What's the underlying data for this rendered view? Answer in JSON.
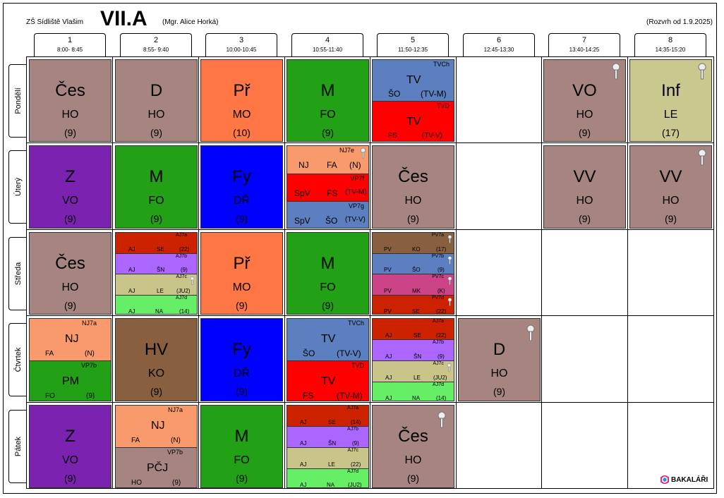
{
  "header": {
    "school": "ZŠ Sídliště Vlašim",
    "class_name": "VII.A",
    "teacher": "(Mgr. Alice Horká)",
    "valid_from": "(Rozvrh od 1.9.2025)"
  },
  "periods": [
    {
      "num": "1",
      "time": "8:00- 8:45"
    },
    {
      "num": "2",
      "time": "8:55- 9:40"
    },
    {
      "num": "3",
      "time": "10:00-10:45"
    },
    {
      "num": "4",
      "time": "10:55-11:40"
    },
    {
      "num": "5",
      "time": "11:50-12:35"
    },
    {
      "num": "6",
      "time": "12:45-13:30"
    },
    {
      "num": "7",
      "time": "13:40-14:25"
    },
    {
      "num": "8",
      "time": "14:35-15:20"
    }
  ],
  "days": [
    "Pondělí",
    "Úterý",
    "Středa",
    "Čtvrtek",
    "Pátek"
  ],
  "cells": {
    "mo1": {
      "subject": "Čes",
      "teacher": "HO",
      "room": "(9)"
    },
    "mo2": {
      "subject": "D",
      "teacher": "HO",
      "room": "(9)"
    },
    "mo3": {
      "subject": "Př",
      "teacher": "MO",
      "room": "(10)"
    },
    "mo4": {
      "subject": "M",
      "teacher": "FO",
      "room": "(9)"
    },
    "mo5a": {
      "group": "TVCh",
      "subject": "TV",
      "teacher": "ŠO",
      "room": "(TV-M)"
    },
    "mo5b": {
      "group": "TVD",
      "subject": "TV",
      "teacher": "FS",
      "room": "(TV-V)"
    },
    "mo7": {
      "subject": "VO",
      "teacher": "HO",
      "room": "(9)"
    },
    "mo8": {
      "subject": "Inf",
      "teacher": "LE",
      "room": "(17)"
    },
    "tu1": {
      "subject": "Z",
      "teacher": "VO",
      "room": "(9)"
    },
    "tu2": {
      "subject": "M",
      "teacher": "FO",
      "room": "(9)"
    },
    "tu3": {
      "subject": "Fy",
      "teacher": "DŘ",
      "room": "(9)"
    },
    "tu4a": {
      "group": "NJ7e",
      "subject": "NJ",
      "teacher": "FA",
      "room": "(N)"
    },
    "tu4b": {
      "group": "VP7f",
      "subject": "SpV",
      "teacher": "FS",
      "room": "(TV-M)"
    },
    "tu4c": {
      "group": "VP7g",
      "subject": "SpV",
      "teacher": "ŠO",
      "room": "(TV-V)"
    },
    "tu5": {
      "subject": "Čes",
      "teacher": "HO",
      "room": "(9)"
    },
    "tu7": {
      "subject": "VV",
      "teacher": "HO",
      "room": "(9)"
    },
    "tu8": {
      "subject": "VV",
      "teacher": "HO",
      "room": "(9)"
    },
    "we1": {
      "subject": "Čes",
      "teacher": "HO",
      "room": "(9)"
    },
    "we2a": {
      "group": "AJ7a",
      "subject": "AJ",
      "teacher": "SE",
      "room": "(22)"
    },
    "we2b": {
      "group": "AJ7b",
      "subject": "AJ",
      "teacher": "ŠN",
      "room": "(9)"
    },
    "we2c": {
      "group": "AJ7c",
      "subject": "AJ",
      "teacher": "LE",
      "room": "(JU2)"
    },
    "we2d": {
      "group": "AJ7d",
      "subject": "AJ",
      "teacher": "NA",
      "room": "(14)"
    },
    "we3": {
      "subject": "Př",
      "teacher": "MO",
      "room": "(9)"
    },
    "we4": {
      "subject": "M",
      "teacher": "FO",
      "room": "(9)"
    },
    "we5a": {
      "group": "PV7a",
      "subject": "PV",
      "teacher": "KO",
      "room": "(17)"
    },
    "we5b": {
      "group": "PV7b",
      "subject": "PV",
      "teacher": "ŠO",
      "room": "(9)"
    },
    "we5c": {
      "group": "PV7c",
      "subject": "PV",
      "teacher": "MK",
      "room": "(K)"
    },
    "we5d": {
      "group": "PV7d",
      "subject": "PV",
      "teacher": "SE",
      "room": "(22)"
    },
    "th1a": {
      "group": "NJ7a",
      "subject": "NJ",
      "teacher": "FA",
      "room": "(N)"
    },
    "th1b": {
      "group": "VP7b",
      "subject": "PM",
      "teacher": "FO",
      "room": "(9)"
    },
    "th2": {
      "subject": "HV",
      "teacher": "KO",
      "room": "(9)"
    },
    "th3": {
      "subject": "Fy",
      "teacher": "DŘ",
      "room": "(9)"
    },
    "th4a": {
      "group": "TVCh",
      "subject": "TV",
      "teacher": "ŠO",
      "room": "(TV-V)"
    },
    "th4b": {
      "group": "TVD",
      "subject": "TV",
      "teacher": "FS",
      "room": "(TV-M)"
    },
    "th5a": {
      "group": "AJ7a",
      "subject": "AJ",
      "teacher": "SE",
      "room": "(22)"
    },
    "th5b": {
      "group": "AJ7b",
      "subject": "AJ",
      "teacher": "ŠN",
      "room": "(9)"
    },
    "th5c": {
      "group": "AJ7c",
      "subject": "AJ",
      "teacher": "LE",
      "room": "(JU2)"
    },
    "th5d": {
      "group": "AJ7d",
      "subject": "AJ",
      "teacher": "NA",
      "room": "(14)"
    },
    "th6": {
      "subject": "D",
      "teacher": "HO",
      "room": "(9)"
    },
    "fr1": {
      "subject": "Z",
      "teacher": "VO",
      "room": "(9)"
    },
    "fr2a": {
      "group": "NJ7a",
      "subject": "NJ",
      "teacher": "FA",
      "room": "(N)"
    },
    "fr2b": {
      "group": "VP7b",
      "subject": "PČJ",
      "teacher": "HO",
      "room": "(9)"
    },
    "fr3": {
      "subject": "M",
      "teacher": "FO",
      "room": "(9)"
    },
    "fr4a": {
      "group": "AJ7a",
      "subject": "AJ",
      "teacher": "SE",
      "room": "(14)"
    },
    "fr4b": {
      "group": "AJ7b",
      "subject": "AJ",
      "teacher": "ŠN",
      "room": "(9)"
    },
    "fr4c": {
      "group": "AJ7c",
      "subject": "AJ",
      "teacher": "LE",
      "room": "(22)"
    },
    "fr4d": {
      "group": "AJ7d",
      "subject": "AJ",
      "teacher": "NA",
      "room": "(JU2)"
    },
    "fr5": {
      "subject": "Čes",
      "teacher": "HO",
      "room": "(9)"
    }
  },
  "logo": {
    "text": "BAKALÁŘI"
  },
  "colors": {
    "rose": "#a68580",
    "orange": "#ff7744",
    "green": "#22a016",
    "blue": "#5b7fbf",
    "red": "#ff0000",
    "olive": "#c9c88e",
    "purple": "#7b22b0",
    "brightblue": "#0000ff",
    "salmon": "#f99a6c",
    "brown": "#886040",
    "darkred": "#cc2200",
    "lavender": "#aa66ff",
    "khaki": "#c8c48a",
    "lightgreen": "#66ee66",
    "pink": "#cc4488"
  },
  "icons": [
    "key-icon",
    "bakalari-logo-icon"
  ]
}
